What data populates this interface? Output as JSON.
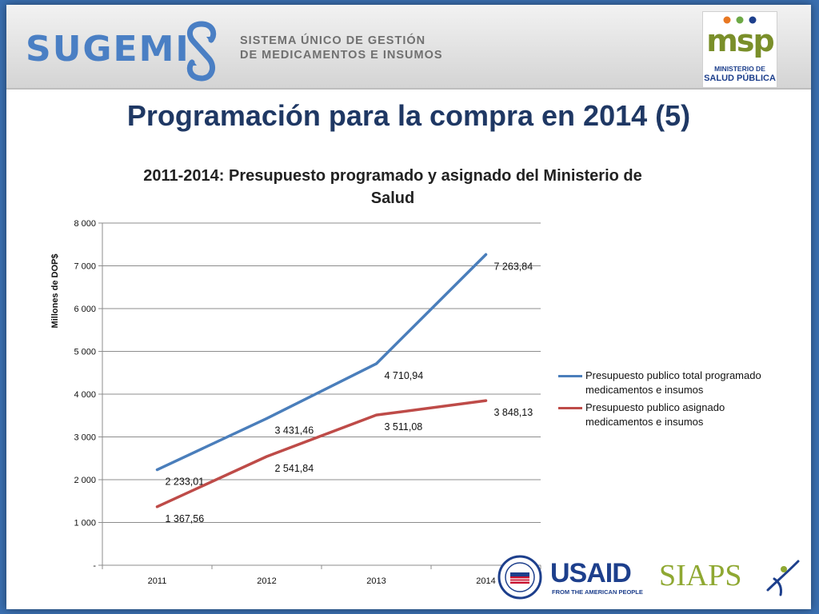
{
  "header": {
    "logo_word": "SUGEMI",
    "logo_tagline_line1": "SISTEMA ÚNICO DE GESTIÓN",
    "logo_tagline_line2": "DE MEDICAMENTOS E INSUMOS",
    "msp_logo_text": "msp",
    "msp_line1": "MINISTERIO DE",
    "msp_line2": "SALUD PÚBLICA"
  },
  "slide_title": "Programación para la compra en 2014 (5)",
  "footer": {
    "usaid_label": "USAID",
    "usaid_sub": "FROM THE AMERICAN PEOPLE",
    "siaps_label": "SIAPS"
  },
  "colors": {
    "series1": "#4a7ebb",
    "series2": "#be4b48",
    "title": "#1f3864"
  },
  "chart_data": {
    "type": "line",
    "title_line1": "2011-2014: Presupuesto programado y asignado del Ministerio de",
    "title_line2": "Salud",
    "ylabel": "Millones de DOP$",
    "xlabel": "",
    "categories": [
      "2011",
      "2012",
      "2013",
      "2014"
    ],
    "ylim": [
      0,
      8000
    ],
    "yticks": [
      0,
      1000,
      2000,
      3000,
      4000,
      5000,
      6000,
      7000,
      8000
    ],
    "ytick_labels": [
      "-",
      "1 000",
      "2 000",
      "3 000",
      "4 000",
      "5 000",
      "6 000",
      "7 000",
      "8 000"
    ],
    "grid": true,
    "legend_position": "right",
    "series": [
      {
        "name": "Presupuesto publico total programado medicamentos e insumos",
        "legend_line1": "Presupuesto publico total programado",
        "legend_line2": "medicamentos e insumos",
        "values": [
          2233.01,
          3431.46,
          4710.94,
          7263.84
        ],
        "labels": [
          "2 233,01",
          "3 431,46",
          "4 710,94",
          "7 263,84"
        ],
        "color": "#4a7ebb"
      },
      {
        "name": "Presupuesto publico asignado medicamentos e insumos",
        "legend_line1": "Presupuesto publico asignado",
        "legend_line2": "medicamentos e insumos",
        "values": [
          1367.56,
          2541.84,
          3511.08,
          3848.13
        ],
        "labels": [
          "1 367,56",
          "2 541,84",
          "3 511,08",
          "3 848,13"
        ],
        "color": "#be4b48"
      }
    ]
  }
}
